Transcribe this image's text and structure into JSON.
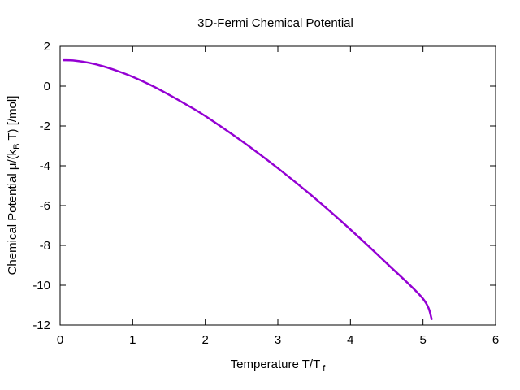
{
  "chart_data": {
    "type": "line",
    "title": "3D-Fermi Chemical Potential",
    "xlabel": {
      "main": "Temperature  T/T",
      "sub": "f"
    },
    "ylabel": {
      "pre": "Chemical Potential ",
      "mu": "μ",
      "mid1": "/(k",
      "sub": "B",
      "mid2": " T)",
      "post": " [/mol]"
    },
    "xlim": [
      0,
      6
    ],
    "ylim": [
      -12,
      2
    ],
    "xticks": [
      "0",
      "1",
      "2",
      "3",
      "4",
      "5",
      "6"
    ],
    "yticks": [
      "2",
      "0",
      "-2",
      "-4",
      "-6",
      "-8",
      "-10",
      "-12"
    ],
    "grid": false,
    "series": [
      {
        "color": "#9400d3",
        "x": [
          0.05,
          0.2,
          0.4,
          0.6,
          0.8,
          1.0,
          1.25,
          1.5,
          1.75,
          2.0,
          2.5,
          3.0,
          3.5,
          4.0,
          4.5,
          5.0,
          5.12
        ],
        "y": [
          1.3,
          1.28,
          1.17,
          0.99,
          0.75,
          0.47,
          0.05,
          -0.43,
          -0.95,
          -1.5,
          -2.75,
          -4.12,
          -5.6,
          -7.2,
          -8.9,
          -10.68,
          -11.7
        ]
      }
    ]
  }
}
